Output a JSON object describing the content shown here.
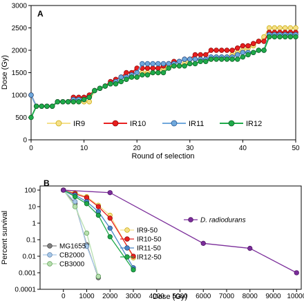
{
  "chart_data": [
    {
      "panel": "A",
      "type": "line",
      "xlabel": "Round of selection",
      "ylabel": "Dose (Gy)",
      "xlim": [
        0,
        50
      ],
      "ylim": [
        0,
        3000
      ],
      "xticks": [
        0,
        10,
        20,
        30,
        40,
        50
      ],
      "yticks": [
        0,
        500,
        1000,
        1500,
        2000,
        2500,
        3000
      ],
      "legend_position": "bottom",
      "series": [
        {
          "name": "IR9",
          "color": "#f5e08a",
          "stroke": "#c8a800",
          "x": [
            0,
            1,
            2,
            3,
            4,
            5,
            6,
            7,
            8,
            9,
            10,
            11,
            12,
            13,
            14,
            15,
            16,
            17,
            18,
            19,
            20,
            21,
            22,
            23,
            24,
            25,
            26,
            27,
            28,
            29,
            30,
            31,
            32,
            33,
            34,
            35,
            36,
            37,
            38,
            39,
            40,
            41,
            42,
            43,
            44,
            45,
            46,
            47,
            48,
            49,
            50
          ],
          "y": [
            1000,
            750,
            750,
            750,
            750,
            850,
            850,
            850,
            850,
            850,
            850,
            850,
            1100,
            1150,
            1200,
            1250,
            1300,
            1400,
            1400,
            1400,
            1400,
            1500,
            1500,
            1500,
            1500,
            1600,
            1650,
            1650,
            1650,
            1700,
            1800,
            1800,
            1800,
            1800,
            1800,
            1850,
            1850,
            1850,
            1900,
            1950,
            2000,
            2050,
            2100,
            2200,
            2300,
            2500,
            2500,
            2500,
            2500,
            2500,
            2500
          ]
        },
        {
          "name": "IR10",
          "color": "#e81f1f",
          "stroke": "#8a0000",
          "x": [
            0,
            1,
            2,
            3,
            4,
            5,
            6,
            7,
            8,
            9,
            10,
            11,
            12,
            13,
            14,
            15,
            16,
            17,
            18,
            19,
            20,
            21,
            22,
            23,
            24,
            25,
            26,
            27,
            28,
            29,
            30,
            31,
            32,
            33,
            34,
            35,
            36,
            37,
            38,
            39,
            40,
            41,
            42,
            43,
            44,
            45,
            46,
            47,
            48,
            49,
            50
          ],
          "y": [
            1000,
            750,
            750,
            750,
            750,
            850,
            850,
            850,
            950,
            950,
            950,
            1000,
            1100,
            1150,
            1200,
            1300,
            1350,
            1400,
            1500,
            1500,
            1600,
            1600,
            1600,
            1600,
            1600,
            1650,
            1700,
            1750,
            1750,
            1800,
            1800,
            1900,
            1900,
            1900,
            2000,
            2000,
            2000,
            2000,
            2000,
            2050,
            2100,
            2100,
            2150,
            2200,
            2200,
            2400,
            2400,
            2400,
            2400,
            2400,
            2400
          ]
        },
        {
          "name": "IR11",
          "color": "#6fa8dc",
          "stroke": "#1f4e8a",
          "x": [
            0,
            1,
            2,
            3,
            4,
            5,
            6,
            7,
            8,
            9,
            10,
            11,
            12,
            13,
            14,
            15,
            16,
            17,
            18,
            19,
            20,
            21,
            22,
            23,
            24,
            25,
            26,
            27,
            28,
            29,
            30,
            31,
            32,
            33,
            34,
            35,
            36,
            37,
            38,
            39,
            40,
            41,
            42,
            43,
            44,
            45,
            46,
            47,
            48,
            49,
            50
          ],
          "y": [
            1000,
            750,
            750,
            750,
            750,
            850,
            850,
            850,
            900,
            900,
            900,
            950,
            1100,
            1150,
            1200,
            1250,
            1300,
            1400,
            1400,
            1450,
            1500,
            1700,
            1700,
            1700,
            1700,
            1700,
            1700,
            1700,
            1750,
            1800,
            1800,
            1800,
            1800,
            1800,
            1850,
            1850,
            1850,
            1850,
            1850,
            1900,
            1950,
            1950,
            1950,
            2000,
            2000,
            2350,
            2350,
            2350,
            2350,
            2350,
            2350
          ]
        },
        {
          "name": "IR12",
          "color": "#1faa4a",
          "stroke": "#0a5a22",
          "x": [
            0,
            1,
            2,
            3,
            4,
            5,
            6,
            7,
            8,
            9,
            10,
            11,
            12,
            13,
            14,
            15,
            16,
            17,
            18,
            19,
            20,
            21,
            22,
            23,
            24,
            25,
            26,
            27,
            28,
            29,
            30,
            31,
            32,
            33,
            34,
            35,
            36,
            37,
            38,
            39,
            40,
            41,
            42,
            43,
            44,
            45,
            46,
            47,
            48,
            49,
            50
          ],
          "y": [
            500,
            750,
            750,
            750,
            750,
            850,
            850,
            850,
            850,
            850,
            900,
            950,
            1100,
            1150,
            1200,
            1250,
            1250,
            1300,
            1350,
            1400,
            1400,
            1450,
            1450,
            1500,
            1500,
            1500,
            1600,
            1650,
            1650,
            1650,
            1700,
            1700,
            1750,
            1750,
            1800,
            1800,
            1800,
            1800,
            1800,
            1800,
            1850,
            1900,
            1950,
            2000,
            2000,
            2300,
            2300,
            2300,
            2300,
            2300,
            2300
          ]
        }
      ]
    },
    {
      "panel": "B",
      "type": "line",
      "xlabel": "Dose (Gy)",
      "ylabel": "Percent survival",
      "xscale": "linear",
      "yscale": "log",
      "xlim": [
        -1000,
        10200
      ],
      "ylim": [
        0.0001,
        100
      ],
      "xticks": [
        0,
        1000,
        2000,
        3000,
        4000,
        5000,
        6000,
        7000,
        8000,
        9000,
        10000
      ],
      "yticks": [
        0.0001,
        0.001,
        0.01,
        0.1,
        1,
        10,
        100
      ],
      "ytick_labels": [
        "0.0001",
        "0.001",
        "0.01",
        "0.1",
        "1",
        "10",
        "100"
      ],
      "legends": [
        "MG1655",
        "CB2000",
        "CB3000",
        "IR9-50",
        "IR10-50",
        "IR11-50",
        "IR12-50",
        "D. radiodurans"
      ],
      "series": [
        {
          "name": "MG1655",
          "color": "#808080",
          "stroke": "#404040",
          "x": [
            0,
            500,
            1000,
            1500
          ],
          "y": [
            100,
            15,
            0.05,
            0.0005
          ]
        },
        {
          "name": "CB2000",
          "color": "#a8c8e8",
          "stroke": "#5a7ea8",
          "x": [
            0,
            500,
            1000,
            1500
          ],
          "y": [
            100,
            20,
            0.04,
            0.0006
          ]
        },
        {
          "name": "CB3000",
          "color": "#b8e0b0",
          "stroke": "#5a9a50",
          "x": [
            0,
            500,
            1000,
            1500
          ],
          "y": [
            100,
            10,
            0.25,
            0.0006
          ]
        },
        {
          "name": "IR9-50",
          "color": "#f5e08a",
          "stroke": "#c8a800",
          "x": [
            0,
            500,
            1000,
            1500,
            2000,
            3000
          ],
          "y": [
            100,
            70,
            40,
            12,
            3,
            0.008
          ]
        },
        {
          "name": "IR10-50",
          "color": "#e81f1f",
          "stroke": "#8a0000",
          "x": [
            0,
            500,
            1000,
            1500,
            2000,
            3000
          ],
          "y": [
            100,
            60,
            35,
            10,
            2,
            0.01
          ]
        },
        {
          "name": "IR11-50",
          "color": "#4a86c8",
          "stroke": "#1f3e7a",
          "x": [
            0,
            500,
            1000,
            1500,
            2000,
            3000
          ],
          "y": [
            100,
            50,
            20,
            5,
            0.5,
            0.002
          ]
        },
        {
          "name": "IR12-50",
          "color": "#1faa4a",
          "stroke": "#0a5a22",
          "x": [
            0,
            500,
            1000,
            1500,
            2000,
            3000
          ],
          "y": [
            100,
            40,
            15,
            3,
            0.15,
            0.0015
          ]
        },
        {
          "name": "D. radiodurans",
          "color": "#7b2d9a",
          "stroke": "#4a1060",
          "x": [
            0,
            2000,
            6000,
            8000,
            10000
          ],
          "y": [
            100,
            70,
            0.06,
            0.03,
            0.001
          ]
        }
      ]
    }
  ]
}
